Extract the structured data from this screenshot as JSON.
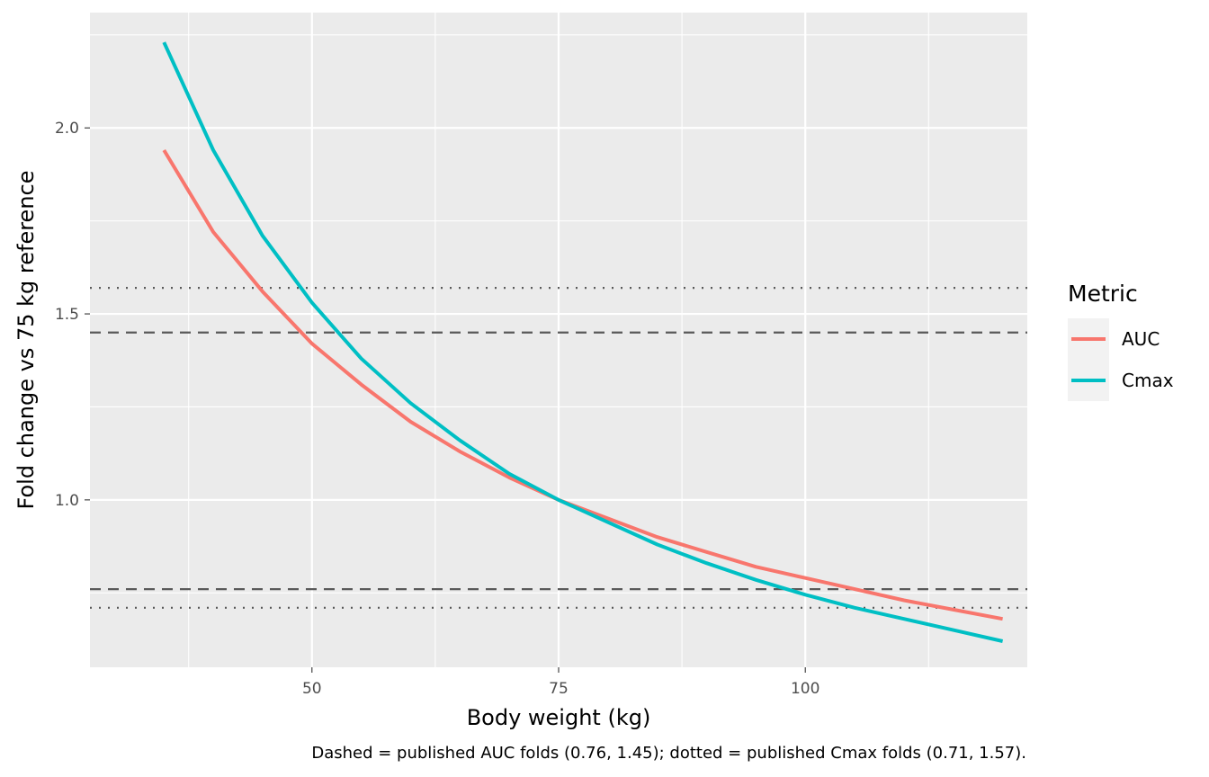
{
  "chart_data": {
    "type": "line",
    "xlabel": "Body weight (kg)",
    "ylabel": "Fold change vs 75 kg reference",
    "caption": "Dashed = published AUC folds (0.76, 1.45); dotted = published Cmax folds (0.71, 1.57).",
    "xlim": [
      27.5,
      122.5
    ],
    "ylim": [
      0.55,
      2.31
    ],
    "x_ticks": [
      50,
      75,
      100
    ],
    "x_tick_labels": [
      "50",
      "75",
      "100"
    ],
    "y_ticks": [
      1.0,
      1.5,
      2.0
    ],
    "y_tick_labels": [
      "1.0",
      "1.5",
      "2.0"
    ],
    "grid": true,
    "legend": {
      "title": "Metric",
      "position": "right"
    },
    "x": [
      35,
      40,
      45,
      50,
      55,
      60,
      65,
      70,
      75,
      80,
      85,
      90,
      95,
      100,
      105,
      110,
      115,
      120
    ],
    "series": [
      {
        "name": "AUC",
        "color": "#F8766D",
        "values": [
          1.94,
          1.72,
          1.56,
          1.42,
          1.31,
          1.21,
          1.13,
          1.06,
          1.0,
          0.95,
          0.9,
          0.86,
          0.82,
          0.79,
          0.76,
          0.73,
          0.705,
          0.68
        ]
      },
      {
        "name": "Cmax",
        "color": "#00BFC4",
        "values": [
          2.23,
          1.94,
          1.71,
          1.53,
          1.38,
          1.26,
          1.16,
          1.07,
          1.0,
          0.94,
          0.88,
          0.83,
          0.785,
          0.745,
          0.71,
          0.68,
          0.65,
          0.62
        ]
      }
    ],
    "reference_lines": [
      {
        "metric": "AUC",
        "style": "dashed",
        "values": [
          0.76,
          1.45
        ],
        "color": "#595959"
      },
      {
        "metric": "Cmax",
        "style": "dotted",
        "values": [
          0.71,
          1.57
        ],
        "color": "#595959"
      }
    ]
  }
}
